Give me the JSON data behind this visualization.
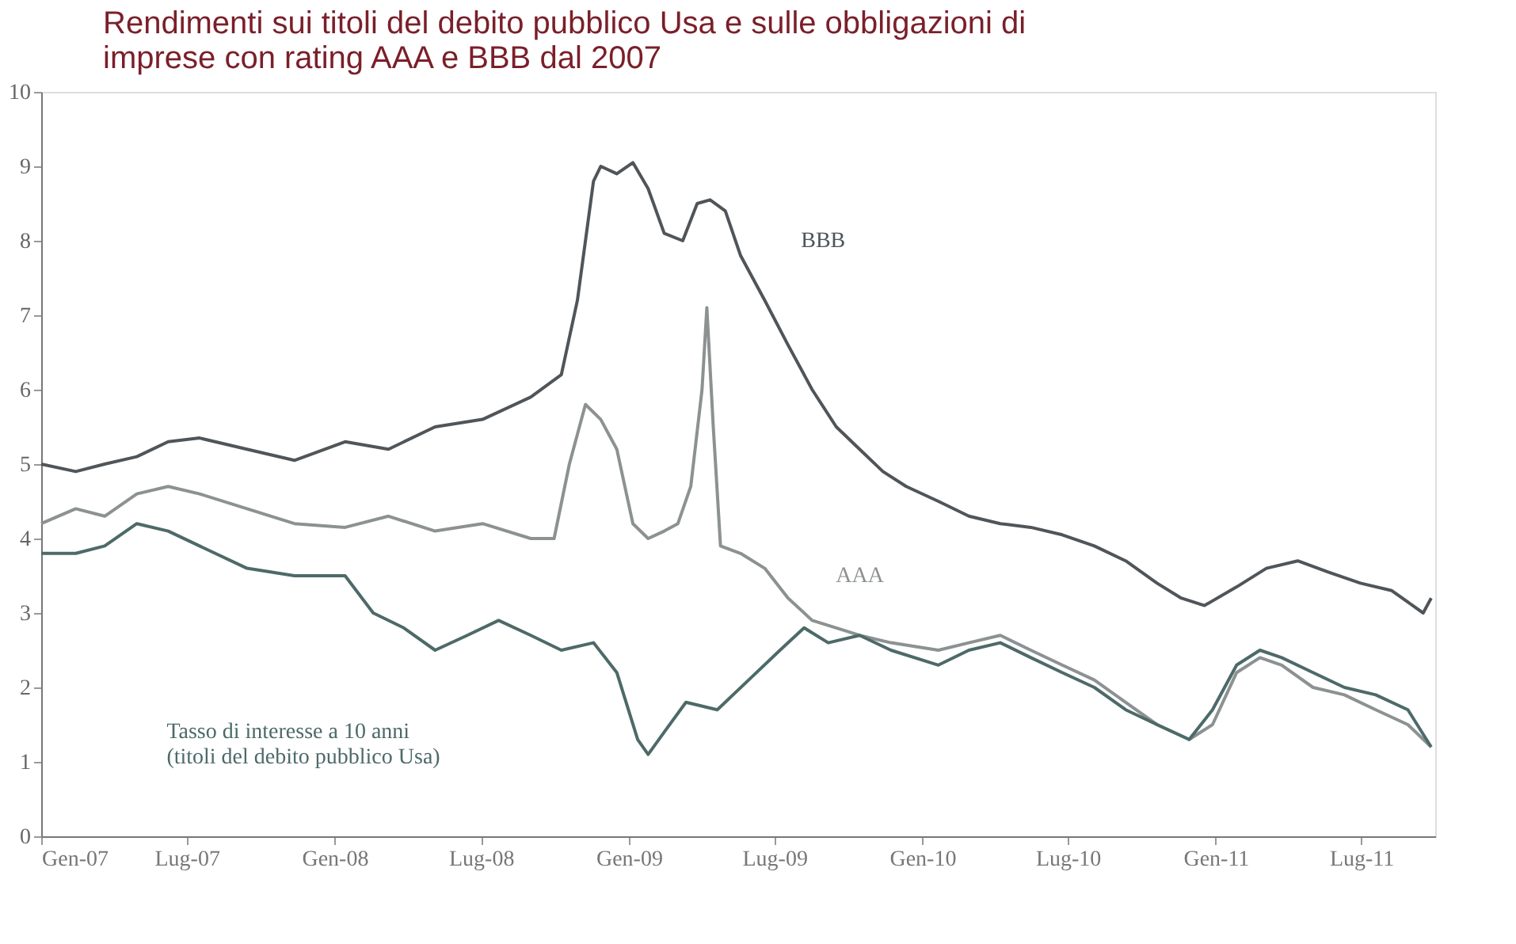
{
  "chart_data": {
    "type": "line",
    "title": "Rendimenti sui titoli del debito pubblico Usa e sulle obbligazioni di\nimprese con rating AAA e BBB dal 2007",
    "xlim": [
      "2007-01-01",
      "2011-10-01"
    ],
    "xticks": [
      {
        "value": "2007-01-01",
        "label": "Gen-07"
      },
      {
        "value": "2007-07-01",
        "label": "Lug-07"
      },
      {
        "value": "2008-01-01",
        "label": "Gen-08"
      },
      {
        "value": "2008-07-01",
        "label": "Lug-08"
      },
      {
        "value": "2009-01-01",
        "label": "Gen-09"
      },
      {
        "value": "2009-07-01",
        "label": "Lug-09"
      },
      {
        "value": "2010-01-01",
        "label": "Gen-10"
      },
      {
        "value": "2010-07-01",
        "label": "Lug-10"
      },
      {
        "value": "2011-01-01",
        "label": "Gen-11"
      },
      {
        "value": "2011-07-01",
        "label": "Lug-11"
      }
    ],
    "ylim": [
      0,
      10
    ],
    "yticks": [
      0,
      1,
      2,
      3,
      4,
      5,
      6,
      7,
      8,
      9,
      10
    ],
    "grid": false,
    "legend": false,
    "marker": "none",
    "line_style": "solid",
    "series": [
      {
        "name": "BBB",
        "color": "#4f5559",
        "x": [
          "2007-01-01",
          "2007-02-13",
          "2007-03-21",
          "2007-04-30",
          "2007-06-08",
          "2007-07-17",
          "2007-09-14",
          "2007-11-12",
          "2008-01-14",
          "2008-03-08",
          "2008-05-05",
          "2008-07-03",
          "2008-09-01",
          "2008-10-09",
          "2008-10-29",
          "2008-11-18",
          "2008-11-27",
          "2008-12-17",
          "2009-01-06",
          "2009-01-25",
          "2009-02-14",
          "2009-03-09",
          "2009-03-27",
          "2009-04-12",
          "2009-05-01",
          "2009-05-20",
          "2009-06-19",
          "2009-07-18",
          "2009-08-17",
          "2009-09-16",
          "2009-10-15",
          "2009-11-13",
          "2009-12-12",
          "2010-01-21",
          "2010-02-28",
          "2010-04-08",
          "2010-05-16",
          "2010-06-24",
          "2010-08-03",
          "2010-09-11",
          "2010-10-20",
          "2010-11-19",
          "2010-12-18",
          "2011-01-27",
          "2011-03-05",
          "2011-04-13",
          "2011-05-21",
          "2011-06-30",
          "2011-08-08",
          "2011-09-16",
          "2011-09-26"
        ],
        "values": [
          5.0,
          4.9,
          5.0,
          5.1,
          5.3,
          5.35,
          5.2,
          5.05,
          5.3,
          5.2,
          5.5,
          5.6,
          5.9,
          6.2,
          7.2,
          8.8,
          9.0,
          8.9,
          9.05,
          8.7,
          8.1,
          8.0,
          8.5,
          8.55,
          8.4,
          7.8,
          7.2,
          6.6,
          6.0,
          5.5,
          5.2,
          4.9,
          4.7,
          4.5,
          4.3,
          4.2,
          4.15,
          4.05,
          3.9,
          3.7,
          3.4,
          3.2,
          3.1,
          3.35,
          3.6,
          3.7,
          3.55,
          3.4,
          3.3,
          3.0,
          3.2
        ]
      },
      {
        "name": "AAA",
        "color": "#8c9191",
        "x": [
          "2007-01-01",
          "2007-02-13",
          "2007-03-21",
          "2007-04-30",
          "2007-06-08",
          "2007-07-17",
          "2007-09-14",
          "2007-11-12",
          "2008-01-14",
          "2008-03-08",
          "2008-05-05",
          "2008-07-03",
          "2008-09-01",
          "2008-09-30",
          "2008-10-19",
          "2008-11-08",
          "2008-11-27",
          "2008-12-17",
          "2009-01-06",
          "2009-01-25",
          "2009-02-14",
          "2009-03-03",
          "2009-03-19",
          "2009-04-02",
          "2009-04-08",
          "2009-04-16",
          "2009-04-25",
          "2009-05-20",
          "2009-06-19",
          "2009-07-18",
          "2009-08-17",
          "2009-09-16",
          "2009-10-15",
          "2009-11-23",
          "2010-01-21",
          "2010-02-28",
          "2010-04-08",
          "2010-05-16",
          "2010-06-24",
          "2010-08-03",
          "2010-09-11",
          "2010-10-20",
          "2010-11-29",
          "2010-12-28",
          "2011-01-27",
          "2011-02-25",
          "2011-03-24",
          "2011-05-02",
          "2011-06-10",
          "2011-07-19",
          "2011-08-28",
          "2011-09-26"
        ],
        "values": [
          4.2,
          4.4,
          4.3,
          4.6,
          4.7,
          4.6,
          4.4,
          4.2,
          4.15,
          4.3,
          4.1,
          4.2,
          4.0,
          4.0,
          5.0,
          5.8,
          5.6,
          5.2,
          4.2,
          4.0,
          4.1,
          4.2,
          4.7,
          6.0,
          7.1,
          5.5,
          3.9,
          3.8,
          3.6,
          3.2,
          2.9,
          2.8,
          2.7,
          2.6,
          2.5,
          2.6,
          2.7,
          2.5,
          2.3,
          2.1,
          1.8,
          1.5,
          1.3,
          1.5,
          2.2,
          2.4,
          2.3,
          2.0,
          1.9,
          1.7,
          1.5,
          1.2
        ]
      },
      {
        "name": "Tasso di interesse a 10 anni\n(titoli del debito pubblico Usa)",
        "color": "#4d6a69",
        "x": [
          "2007-01-01",
          "2007-02-13",
          "2007-03-21",
          "2007-04-30",
          "2007-06-08",
          "2007-07-17",
          "2007-09-14",
          "2007-11-12",
          "2008-01-14",
          "2008-02-18",
          "2008-03-27",
          "2008-05-05",
          "2008-06-14",
          "2008-07-23",
          "2008-09-01",
          "2008-10-09",
          "2008-11-18",
          "2008-12-17",
          "2009-01-12",
          "2009-01-25",
          "2009-02-14",
          "2009-03-13",
          "2009-04-21",
          "2009-05-30",
          "2009-07-08",
          "2009-08-07",
          "2009-09-06",
          "2009-10-15",
          "2009-11-23",
          "2010-01-21",
          "2010-02-28",
          "2010-04-08",
          "2010-05-16",
          "2010-06-24",
          "2010-08-03",
          "2010-09-11",
          "2010-10-20",
          "2010-11-29",
          "2010-12-28",
          "2011-01-27",
          "2011-02-25",
          "2011-03-24",
          "2011-05-02",
          "2011-06-10",
          "2011-07-19",
          "2011-08-28",
          "2011-09-26"
        ],
        "values": [
          3.8,
          3.8,
          3.9,
          4.2,
          4.1,
          3.9,
          3.6,
          3.5,
          3.5,
          3.0,
          2.8,
          2.5,
          2.7,
          2.9,
          2.7,
          2.5,
          2.6,
          2.2,
          1.3,
          1.1,
          1.4,
          1.8,
          1.7,
          2.1,
          2.5,
          2.8,
          2.6,
          2.7,
          2.5,
          2.3,
          2.5,
          2.6,
          2.4,
          2.2,
          2.0,
          1.7,
          1.5,
          1.3,
          1.7,
          2.3,
          2.5,
          2.4,
          2.2,
          2.0,
          1.9,
          1.7,
          1.2
        ]
      }
    ]
  }
}
